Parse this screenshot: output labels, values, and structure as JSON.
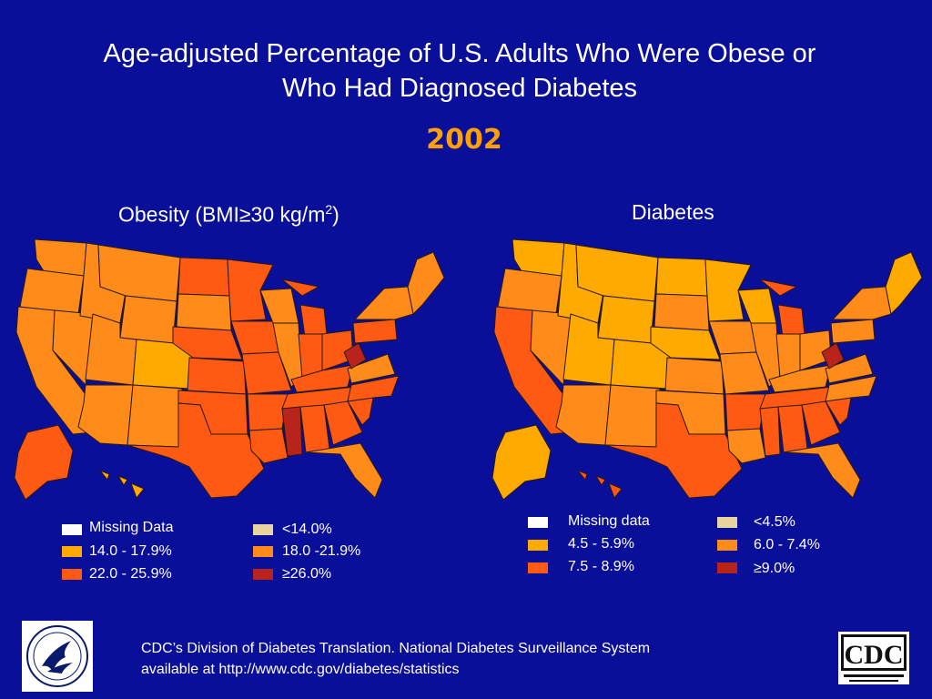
{
  "title": {
    "line1": "Age-adjusted Percentage of U.S. Adults Who Were Obese or",
    "line2": "Who Had Diagnosed Diabetes"
  },
  "year": "2002",
  "maps": {
    "obesity": {
      "heading_main": "Obesity (BMI≥30 kg/m",
      "heading_sup": "2",
      "heading_end": ")",
      "legend": [
        {
          "label": "Missing Data",
          "color": "#ffffff"
        },
        {
          "label": "<14.0%",
          "color": "#e8d4a0"
        },
        {
          "label": "14.0 - 17.9%",
          "color": "#ffaa00"
        },
        {
          "label": "18.0 -21.9%",
          "color": "#ff8c1a"
        },
        {
          "label": "22.0 - 25.9%",
          "color": "#ff5a14"
        },
        {
          "label": "≥26.0%",
          "color": "#b8241c"
        }
      ]
    },
    "diabetes": {
      "heading": "Diabetes",
      "legend": [
        {
          "label": "Missing data",
          "color": "#ffffff"
        },
        {
          "label": "<4.5%",
          "color": "#e8d4a0"
        },
        {
          "label": "4.5 - 5.9%",
          "color": "#ffaa00"
        },
        {
          "label": "6.0 - 7.4%",
          "color": "#ff8c1a"
        },
        {
          "label": "7.5 - 8.9%",
          "color": "#ff5a14"
        },
        {
          "label": "≥9.0%",
          "color": "#b8241c"
        }
      ]
    }
  },
  "source": {
    "line1": "CDC’s Division of Diabetes Translation.  National Diabetes Surveillance System",
    "line2": "available at http://www.cdc.gov/diabetes/statistics"
  },
  "logos": {
    "hhs": "hhs-seal",
    "cdc": "CDC"
  },
  "colors": {
    "background": "#0a0f9a",
    "year": "#ffa000"
  }
}
